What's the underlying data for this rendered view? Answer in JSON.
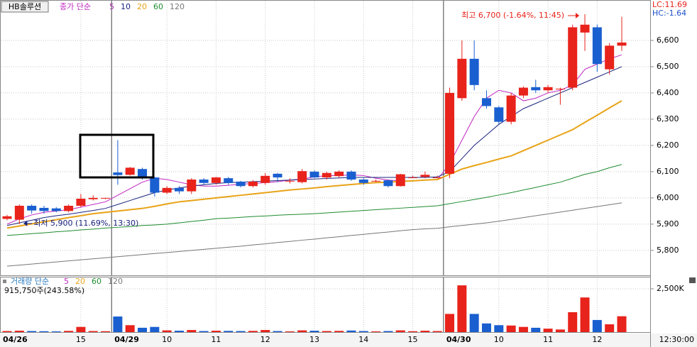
{
  "chart_data": [
    {
      "type": "candlestick",
      "stock_name": "HB솔루션",
      "legend_title": "종가 단순",
      "right_labels": [
        {
          "text": "LC:11.69",
          "color": "#e8231b"
        },
        {
          "text": "HC:-1.64",
          "color": "#1a4fc8"
        }
      ],
      "annotations": {
        "high": "최고 6,700 (-1.64%, 11:45)",
        "low": "최저 5,900 (11.69%, 13:30)"
      },
      "categories": [
        "04/26",
        null,
        null,
        null,
        null,
        null,
        "15",
        null,
        null,
        "04/29",
        null,
        null,
        null,
        "10",
        null,
        null,
        null,
        "11",
        null,
        null,
        null,
        "12",
        null,
        null,
        null,
        "13",
        null,
        null,
        null,
        "14",
        null,
        null,
        null,
        "15",
        null,
        null,
        "04/30",
        null,
        null,
        null,
        "10",
        null,
        null,
        null,
        "11",
        null,
        null,
        null,
        "12",
        null,
        null
      ],
      "x_end_label": "12:30:00",
      "open": [
        5920,
        5917,
        5970,
        5962,
        5960,
        5950,
        5970,
        5995,
        5998,
        6097,
        6088,
        6110,
        6078,
        6020,
        6038,
        6025,
        6070,
        6057,
        6075,
        6062,
        6045,
        6057,
        6092,
        6065,
        6060,
        6100,
        6078,
        6083,
        6100,
        6070,
        6065,
        6067,
        6045,
        6078,
        6080,
        6078,
        6092,
        6380,
        6530,
        6380,
        6345,
        6290,
        6390,
        6422,
        6410,
        6416,
        6420,
        6630,
        6650,
        6490,
        6580
      ],
      "high": [
        5935,
        5975,
        5975,
        5970,
        5965,
        5975,
        6015,
        6010,
        6000,
        6220,
        6118,
        6115,
        6080,
        6045,
        6045,
        6075,
        6075,
        6080,
        6080,
        6065,
        6068,
        6095,
        6095,
        6075,
        6110,
        6105,
        6100,
        6105,
        6105,
        6075,
        6070,
        6070,
        6092,
        6085,
        6100,
        6085,
        6420,
        6600,
        6600,
        6410,
        6350,
        6400,
        6425,
        6450,
        6430,
        6420,
        6660,
        6700,
        6660,
        6590,
        6690
      ],
      "low": [
        5915,
        5900,
        5940,
        5940,
        5945,
        5945,
        5965,
        5990,
        5995,
        6050,
        6085,
        6070,
        6005,
        6015,
        6015,
        6015,
        6050,
        6050,
        6050,
        6040,
        6040,
        6050,
        6060,
        6055,
        6055,
        6075,
        6070,
        6078,
        6065,
        6050,
        6060,
        6040,
        6043,
        6075,
        6075,
        6075,
        6075,
        6370,
        6410,
        6340,
        6280,
        6280,
        6380,
        6400,
        6400,
        6355,
        6410,
        6560,
        6480,
        6470,
        6560
      ],
      "close": [
        5930,
        5970,
        5952,
        5950,
        5950,
        5970,
        5997,
        6000,
        6000,
        6087,
        6115,
        6078,
        6020,
        6038,
        6025,
        6070,
        6057,
        6078,
        6057,
        6045,
        6062,
        6084,
        6078,
        6065,
        6102,
        6078,
        6095,
        6100,
        6070,
        6057,
        6065,
        6045,
        6090,
        6078,
        6088,
        6078,
        6400,
        6530,
        6430,
        6350,
        6290,
        6390,
        6420,
        6410,
        6422,
        6416,
        6650,
        6660,
        6510,
        6580,
        6592
      ],
      "up_color": "#e8231b",
      "down_color": "#1a5fd0",
      "series": [
        {
          "name": "5",
          "color": "#c026c0",
          "values": [
            5900,
            5920,
            5935,
            5945,
            5950,
            5955,
            5965,
            5975,
            5985,
            6010,
            6035,
            6060,
            6075,
            6070,
            6060,
            6050,
            6045,
            6045,
            6048,
            6052,
            6055,
            6058,
            6062,
            6068,
            6072,
            6080,
            6085,
            6085,
            6088,
            6085,
            6075,
            6068,
            6065,
            6065,
            6068,
            6070,
            6130,
            6220,
            6310,
            6380,
            6410,
            6400,
            6370,
            6380,
            6400,
            6410,
            6430,
            6490,
            6510,
            6530,
            6545
          ]
        },
        {
          "name": "10",
          "color": "#1a237e",
          "values": [
            5895,
            5905,
            5915,
            5925,
            5932,
            5938,
            5945,
            5952,
            5960,
            5975,
            5990,
            6005,
            6020,
            6030,
            6038,
            6045,
            6050,
            6055,
            6058,
            6060,
            6062,
            6064,
            6066,
            6068,
            6070,
            6072,
            6074,
            6076,
            6078,
            6078,
            6078,
            6078,
            6078,
            6078,
            6078,
            6080,
            6100,
            6150,
            6200,
            6240,
            6280,
            6310,
            6340,
            6360,
            6380,
            6400,
            6420,
            6440,
            6460,
            6480,
            6500
          ]
        },
        {
          "name": "20",
          "color": "#e8a317",
          "values": [
            5885,
            5893,
            5901,
            5909,
            5917,
            5925,
            5932,
            5940,
            5945,
            5950,
            5955,
            5960,
            5968,
            5977,
            5985,
            5990,
            5995,
            6000,
            6005,
            6010,
            6015,
            6020,
            6025,
            6030,
            6034,
            6038,
            6043,
            6047,
            6051,
            6055,
            6058,
            6060,
            6063,
            6065,
            6068,
            6070,
            6090,
            6110,
            6123,
            6135,
            6148,
            6160,
            6180,
            6200,
            6220,
            6240,
            6260,
            6288,
            6315,
            6343,
            6370
          ]
        },
        {
          "name": "60",
          "color": "#1e8c2e",
          "values": [
            5857,
            5860,
            5864,
            5867,
            5871,
            5874,
            5878,
            5881,
            5885,
            5888,
            5891,
            5895,
            5897,
            5900,
            5905,
            5910,
            5915,
            5921,
            5923,
            5926,
            5929,
            5931,
            5934,
            5936,
            5938,
            5940,
            5943,
            5946,
            5949,
            5952,
            5955,
            5958,
            5961,
            5964,
            5967,
            5970,
            5978,
            5986,
            5994,
            6002,
            6011,
            6020,
            6030,
            6040,
            6050,
            6060,
            6075,
            6090,
            6100,
            6115,
            6127
          ]
        },
        {
          "name": "120",
          "color": "#777777",
          "values": [
            5740,
            5744,
            5748,
            5752,
            5756,
            5760,
            5764,
            5768,
            5772,
            5776,
            5780,
            5784,
            5788,
            5792,
            5796,
            5800,
            5804,
            5808,
            5812,
            5816,
            5821,
            5825,
            5830,
            5834,
            5839,
            5843,
            5848,
            5852,
            5857,
            5861,
            5866,
            5870,
            5875,
            5879,
            5882,
            5884,
            5890,
            5895,
            5900,
            5905,
            5911,
            5918,
            5925,
            5932,
            5939,
            5946,
            5953,
            5960,
            5967,
            5974,
            5981
          ]
        }
      ],
      "ylim": [
        5705,
        6754
      ],
      "yticks": [
        {
          "value": 5800,
          "label": "5,800"
        },
        {
          "value": 5900,
          "label": "5,900"
        },
        {
          "value": 6000,
          "label": "6,000"
        },
        {
          "value": 6100,
          "label": "6,100"
        },
        {
          "value": 6200,
          "label": "6,200"
        },
        {
          "value": 6300,
          "label": "6,300"
        },
        {
          "value": 6400,
          "label": "6,400"
        },
        {
          "value": 6500,
          "label": "6,500"
        },
        {
          "value": 6600,
          "label": "6,600"
        }
      ],
      "grid": true
    },
    {
      "type": "bar",
      "legend_title": "거래량 단순",
      "legend_items": [
        {
          "label": "5",
          "color": "#c026c0"
        },
        {
          "label": "20",
          "color": "#e8a317"
        },
        {
          "label": "60",
          "color": "#1e8c2e"
        },
        {
          "label": "120",
          "color": "#777777"
        }
      ],
      "info": "915,750주(243.58%)",
      "values": [
        60000,
        80000,
        60000,
        50000,
        40000,
        70000,
        300000,
        60000,
        50000,
        900000,
        400000,
        250000,
        300000,
        100000,
        80000,
        120000,
        60000,
        80000,
        70000,
        60000,
        70000,
        120000,
        60000,
        40000,
        100000,
        80000,
        60000,
        70000,
        90000,
        60000,
        40000,
        60000,
        100000,
        50000,
        80000,
        60000,
        1050000,
        2700000,
        1050000,
        500000,
        400000,
        380000,
        300000,
        250000,
        200000,
        150000,
        1150000,
        2000000,
        700000,
        450000,
        915750
      ],
      "ylim": [
        0,
        3115000
      ],
      "yticks": [
        {
          "value": 2500000,
          "label": "2,500K"
        }
      ],
      "grid": true
    }
  ]
}
